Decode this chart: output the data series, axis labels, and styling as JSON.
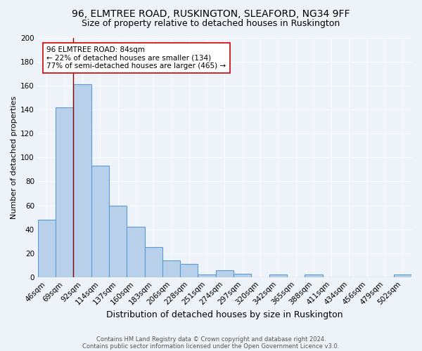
{
  "title1": "96, ELMTREE ROAD, RUSKINGTON, SLEAFORD, NG34 9FF",
  "title2": "Size of property relative to detached houses in Ruskington",
  "xlabel": "Distribution of detached houses by size in Ruskington",
  "ylabel": "Number of detached properties",
  "footnote1": "Contains HM Land Registry data © Crown copyright and database right 2024.",
  "footnote2": "Contains public sector information licensed under the Open Government Licence v3.0.",
  "categories": [
    "46sqm",
    "69sqm",
    "92sqm",
    "114sqm",
    "137sqm",
    "160sqm",
    "183sqm",
    "206sqm",
    "228sqm",
    "251sqm",
    "274sqm",
    "297sqm",
    "320sqm",
    "342sqm",
    "365sqm",
    "388sqm",
    "411sqm",
    "434sqm",
    "456sqm",
    "479sqm",
    "502sqm"
  ],
  "values": [
    48,
    142,
    161,
    93,
    60,
    42,
    25,
    14,
    11,
    2,
    6,
    3,
    0,
    2,
    0,
    2,
    0,
    0,
    0,
    0,
    2
  ],
  "bar_color": "#b8d0ea",
  "bar_edge_color": "#5b9bd5",
  "vline_color": "#8b0000",
  "vline_x": 1.5,
  "annotation_text": "96 ELMTREE ROAD: 84sqm\n← 22% of detached houses are smaller (134)\n77% of semi-detached houses are larger (465) →",
  "annotation_box_color": "white",
  "annotation_box_edge_color": "#cc0000",
  "ylim": [
    0,
    200
  ],
  "yticks": [
    0,
    20,
    40,
    60,
    80,
    100,
    120,
    140,
    160,
    180,
    200
  ],
  "background_color": "#eef2f9",
  "grid_color": "#ffffff",
  "title1_fontsize": 10,
  "title2_fontsize": 9,
  "xlabel_fontsize": 9,
  "ylabel_fontsize": 8,
  "tick_fontsize": 7.5,
  "footnote_fontsize": 6,
  "ann_fontsize": 7.5
}
